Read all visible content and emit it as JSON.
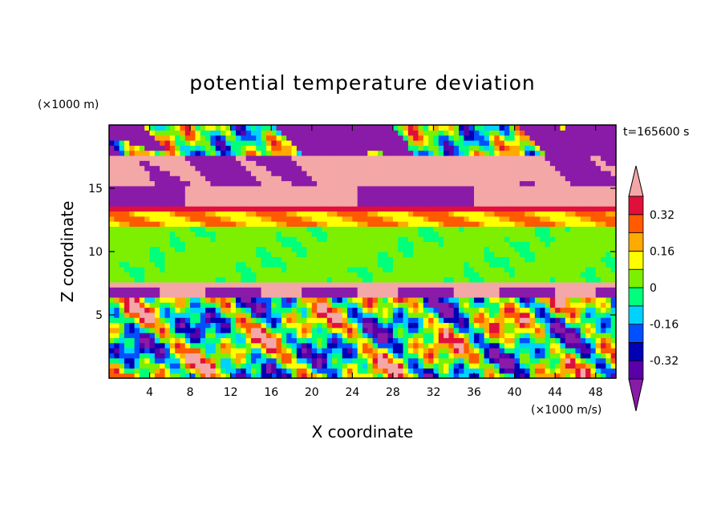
{
  "chart_data": {
    "type": "heatmap",
    "title": "potential temperature deviation",
    "xlabel": "X coordinate",
    "ylabel": "Z coordinate",
    "x_unit": "(×1000 m/s)",
    "y_unit": "(×1000 m)",
    "time_label": "t=165600 s",
    "xlim": [
      0,
      50
    ],
    "ylim": [
      0,
      20
    ],
    "x_ticks": [
      4,
      8,
      12,
      16,
      20,
      24,
      28,
      32,
      36,
      40,
      44,
      48
    ],
    "y_ticks": [
      5,
      10,
      15
    ],
    "colorbar": {
      "levels": [
        -0.4,
        -0.32,
        -0.24,
        -0.16,
        -0.08,
        0,
        0.08,
        0.16,
        0.24,
        0.32,
        0.4
      ],
      "labels": [
        "-0.32",
        "-0.16",
        "0",
        "0.16",
        "0.32"
      ],
      "label_values": [
        -0.32,
        -0.16,
        0,
        0.16,
        0.32
      ],
      "colors": [
        "#8a1aa8",
        "#5a00a8",
        "#0000b4",
        "#0050ff",
        "#00d2ff",
        "#00ff7a",
        "#7cf000",
        "#ffff00",
        "#ffaa00",
        "#ff5a00",
        "#e0103a",
        "#f4a7a7"
      ],
      "extend": "both"
    }
  }
}
